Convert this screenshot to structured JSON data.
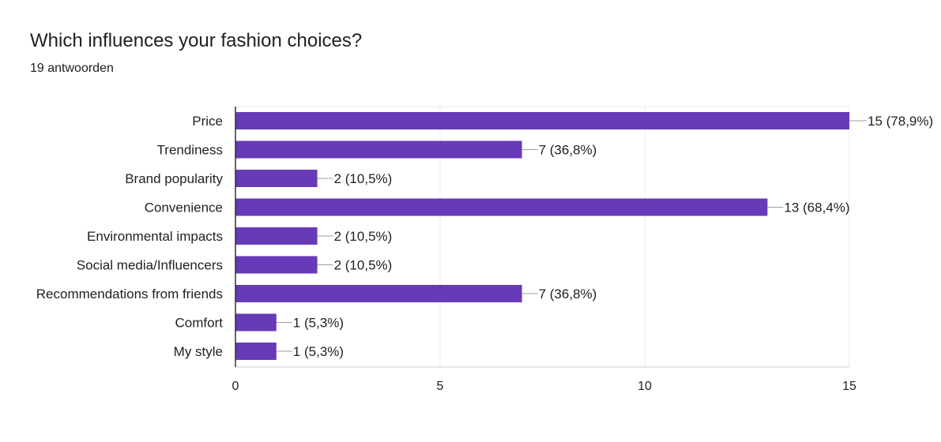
{
  "header": {
    "title": "Which influences your fashion choices?",
    "subtitle": "19 antwoorden"
  },
  "chart_data": {
    "type": "bar",
    "orientation": "horizontal",
    "categories": [
      "Price",
      "Trendiness",
      "Brand popularity",
      "Convenience",
      "Environmental impacts",
      "Social media/Influencers",
      "Recommendations from friends",
      "Comfort",
      "My style"
    ],
    "values": [
      15,
      7,
      2,
      13,
      2,
      2,
      7,
      1,
      1
    ],
    "data_labels": [
      "15 (78,9%)",
      "7 (36,8%)",
      "2 (10,5%)",
      "13 (68,4%)",
      "2 (10,5%)",
      "2 (10,5%)",
      "7 (36,8%)",
      "1 (5,3%)",
      "1 (5,3%)"
    ],
    "x_ticks": [
      "0",
      "5",
      "10",
      "15"
    ],
    "xlim": [
      0,
      15
    ],
    "grid": true,
    "bar_color": "#673ab7"
  }
}
